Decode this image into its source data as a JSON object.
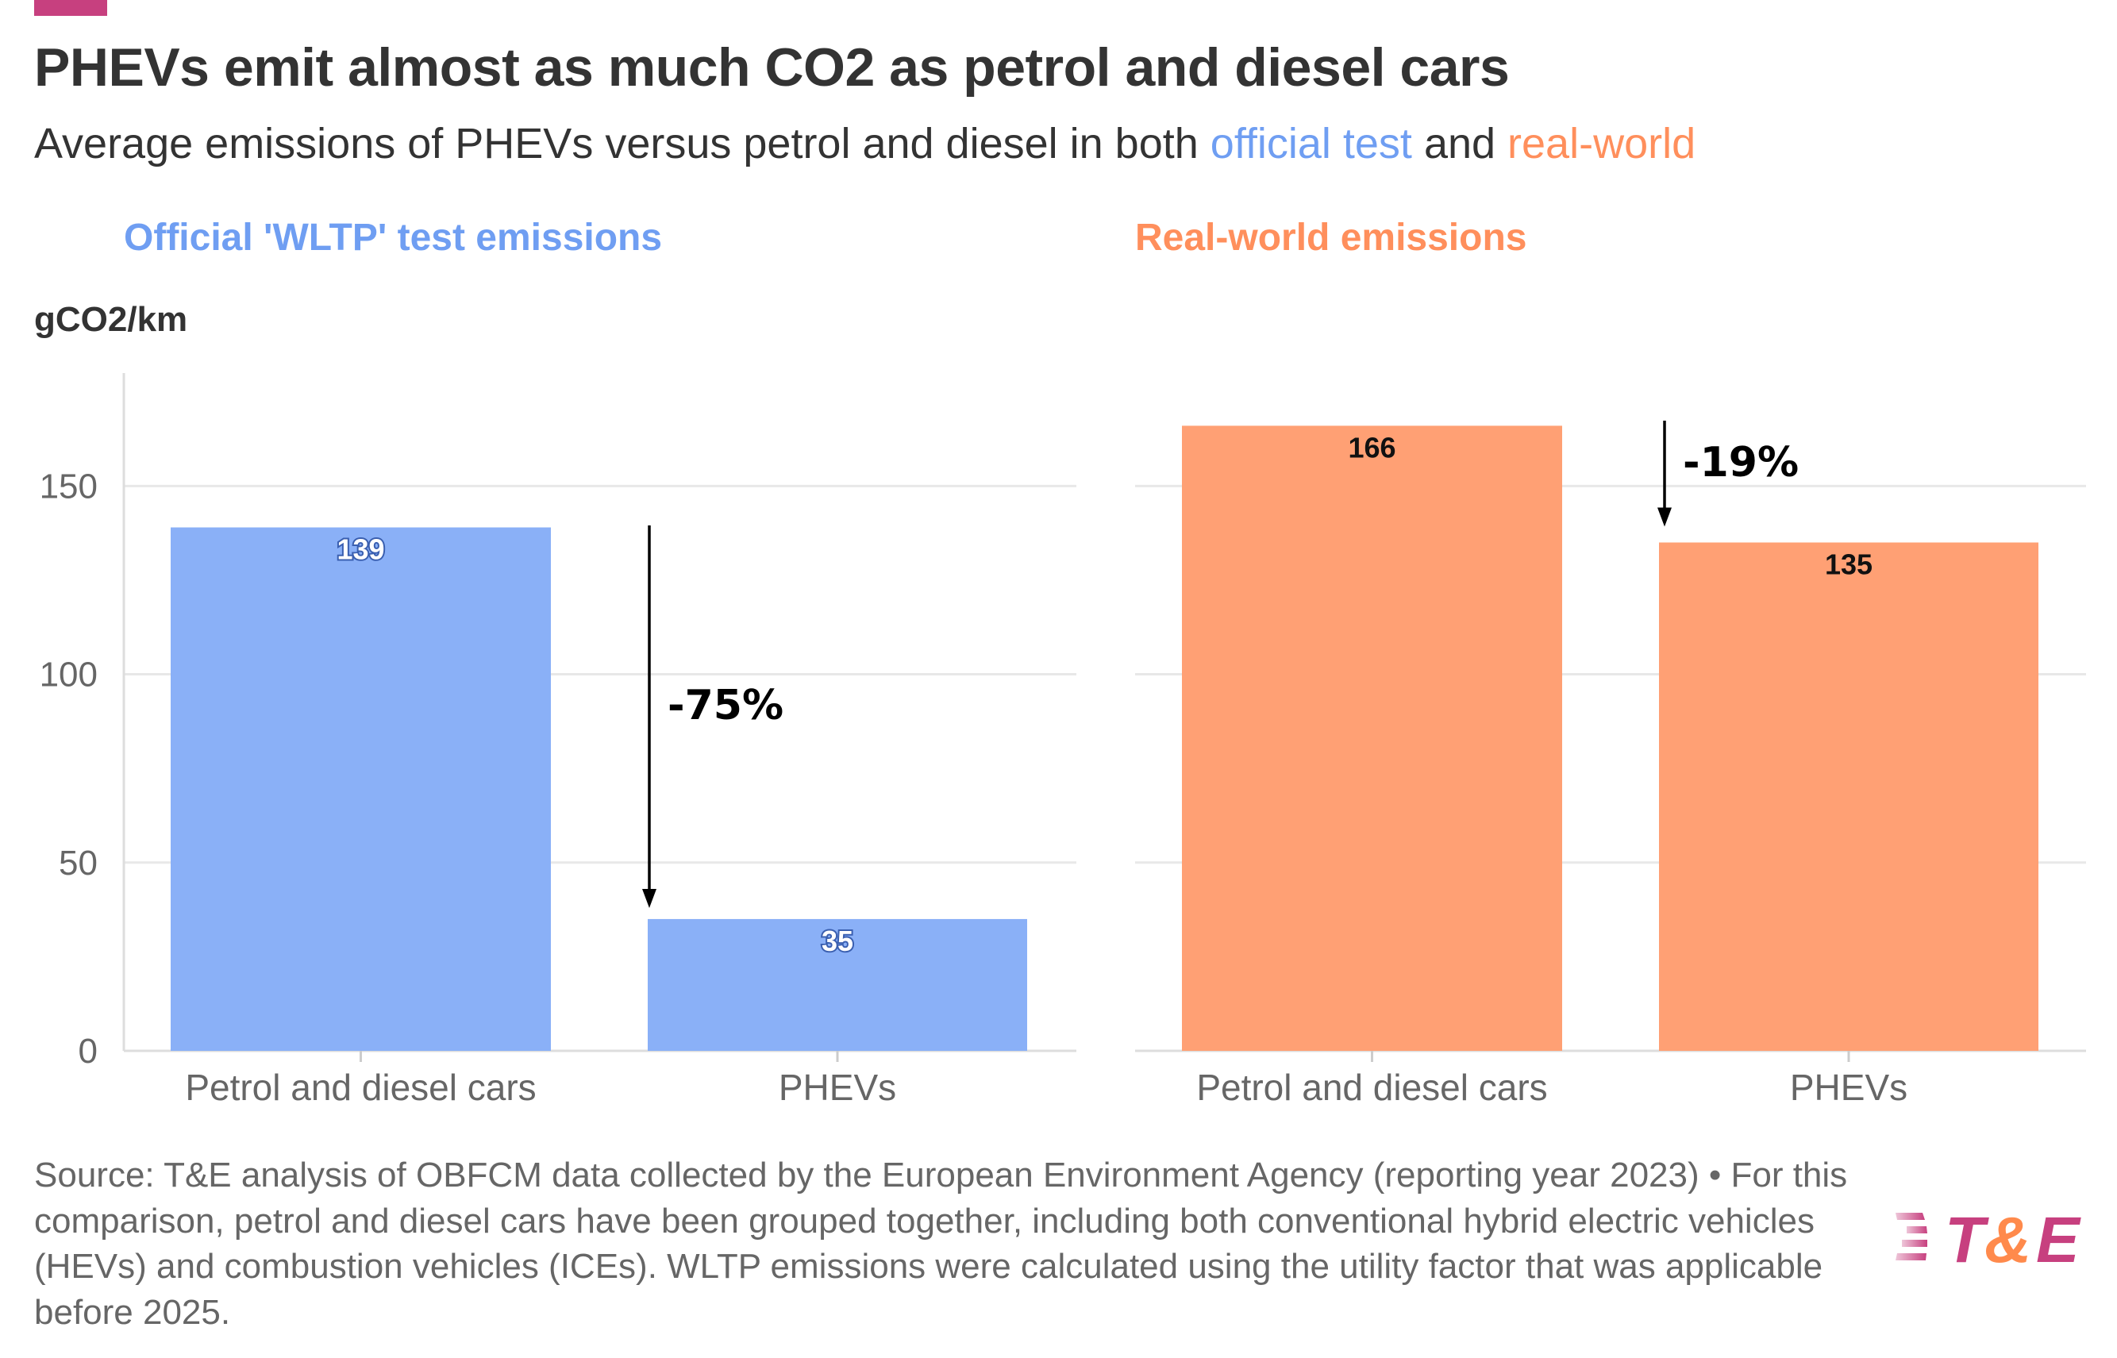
{
  "header": {
    "title": "PHEVs emit almost as much CO2 as petrol and diesel cars",
    "subtitle_parts": [
      "Average emissions of PHEVs versus petrol and diesel in both ",
      "official test",
      " and ",
      "real-world"
    ]
  },
  "colors": {
    "brand": "#c7407f",
    "official": "#8ab0f7",
    "real_world": "#ffa074",
    "official_text": "#6f9ef2",
    "real_world_text": "#ff8f5c"
  },
  "chart_data": [
    {
      "type": "bar",
      "title": "Official 'WLTP' test emissions",
      "ylabel": "gCO2/km",
      "categories": [
        "Petrol and diesel cars",
        "PHEVs"
      ],
      "values": [
        139,
        35
      ],
      "data_labels": [
        "139",
        "35"
      ],
      "ylim": [
        0,
        180
      ],
      "yticks": [
        0,
        50,
        100,
        150
      ],
      "grid": true,
      "annotation": "-75%",
      "color": "#8ab0f7"
    },
    {
      "type": "bar",
      "title": "Real-world emissions",
      "categories": [
        "Petrol and diesel cars",
        "PHEVs"
      ],
      "values": [
        166,
        135
      ],
      "data_labels": [
        "166",
        "135"
      ],
      "ylim": [
        0,
        180
      ],
      "yticks": [
        0,
        50,
        100,
        150
      ],
      "grid": true,
      "annotation": "-19%",
      "color": "#ffa074"
    }
  ],
  "footer": {
    "source": "Source: T&E analysis of OBFCM data collected by the European Environment Agency (reporting year 2023) • For this comparison, petrol and diesel cars have been grouped together, including both conventional hybrid electric vehicles (HEVs) and combustion vehicles (ICEs). WLTP emissions were calculated using the utility factor that was applicable before 2025.",
    "logo": "T&E"
  }
}
